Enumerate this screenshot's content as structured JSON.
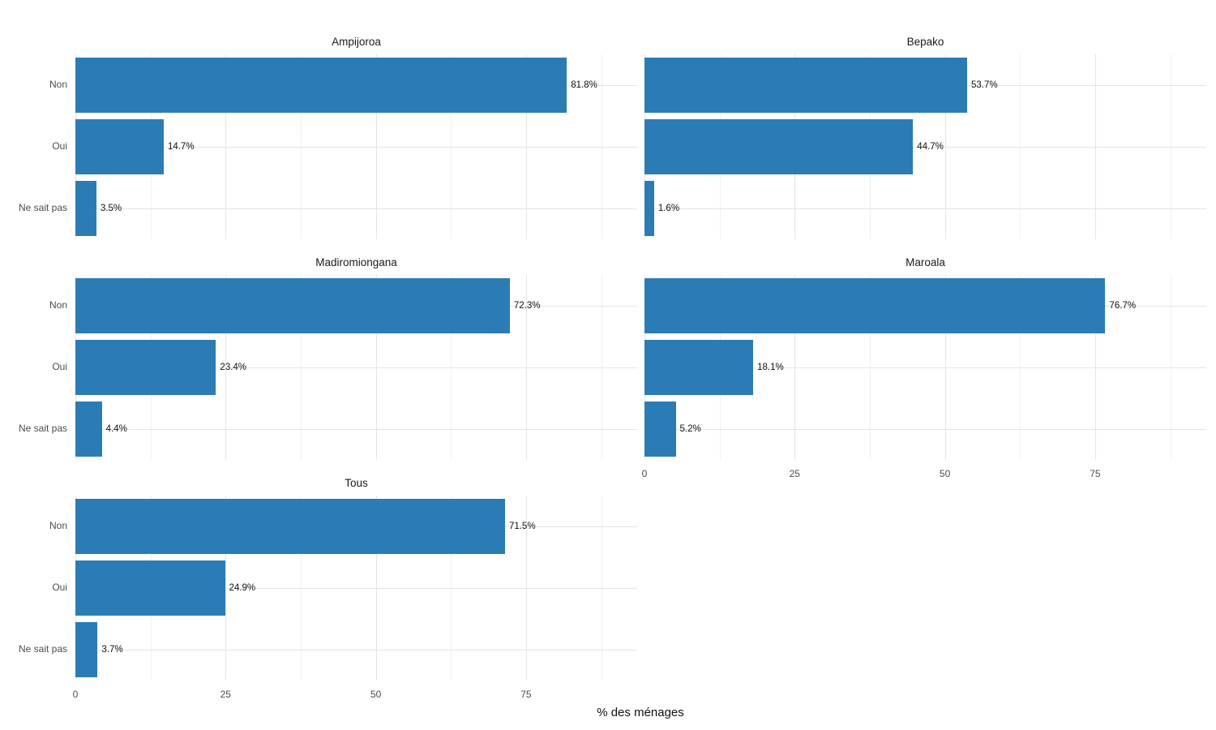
{
  "figure": {
    "xlabel": "% des ménages",
    "bar_color": "#2b7cb5",
    "grid_major_color": "#e4e4e4",
    "grid_minor_color": "#f1f1f1",
    "axis_text_color": "#4d4d4d",
    "title_color": "#1a1a1a"
  },
  "chart_data": {
    "type": "bar",
    "orientation": "horizontal",
    "title": "",
    "xlabel": "% des ménages",
    "ylabel": "",
    "categories": [
      "Non",
      "Oui",
      "Ne sait pas"
    ],
    "x_ticks": [
      0,
      25,
      50,
      75
    ],
    "x_minor_ticks": [
      12.5,
      37.5,
      62.5,
      87.5
    ],
    "xlim": [
      0,
      93.5
    ],
    "grid": true,
    "legend": null,
    "facets": [
      {
        "title": "Ampijoroa",
        "values": [
          81.8,
          14.7,
          3.5
        ],
        "labels": [
          "81.8%",
          "14.7%",
          "3.5%"
        ]
      },
      {
        "title": "Bepako",
        "values": [
          53.7,
          44.7,
          1.6
        ],
        "labels": [
          "53.7%",
          "44.7%",
          "1.6%"
        ]
      },
      {
        "title": "Madiromiongana",
        "values": [
          72.3,
          23.4,
          4.4
        ],
        "labels": [
          "72.3%",
          "23.4%",
          "4.4%"
        ]
      },
      {
        "title": "Maroala",
        "values": [
          76.7,
          18.1,
          5.2
        ],
        "labels": [
          "76.7%",
          "18.1%",
          "5.2%"
        ]
      },
      {
        "title": "Tous",
        "values": [
          71.5,
          24.9,
          3.7
        ],
        "labels": [
          "71.5%",
          "24.9%",
          "3.7%"
        ]
      }
    ]
  }
}
